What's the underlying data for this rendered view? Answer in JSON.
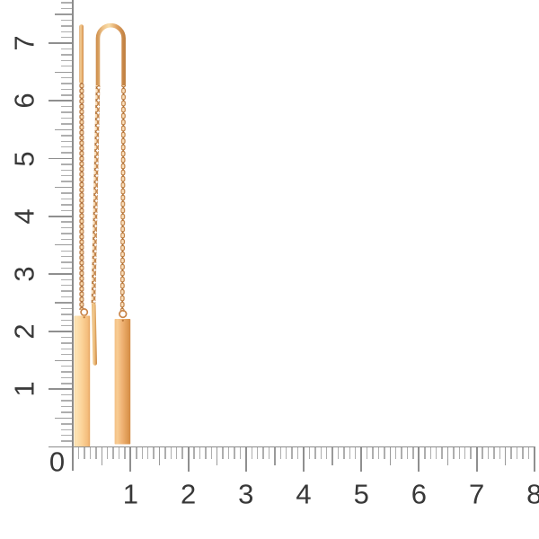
{
  "image_type": "jewelry-product-photo-with-measurement-rulers",
  "background_color": "#ffffff",
  "ruler": {
    "origin_label": "0",
    "line_color": "#8c8c8c",
    "minor_tick_color": "#aeaeae",
    "major_tick_color": "#8f8f8f",
    "label_color": "#383838",
    "vertical": {
      "labels": [
        "1",
        "2",
        "3",
        "4",
        "5",
        "6",
        "7"
      ]
    },
    "horizontal": {
      "labels": [
        "1",
        "2",
        "3",
        "4",
        "5",
        "6",
        "7",
        "8"
      ]
    }
  },
  "jewelry": {
    "description": "pair of gold threader earrings: U-shaped ear wire, cable chain, drop post, vertical bar pendants",
    "items": [
      {
        "name": "left-earring-side-view",
        "parts": [
          "ear-pin",
          "cable-chain",
          "jump-ring",
          "bar-pendant"
        ]
      },
      {
        "name": "right-earring-front-view",
        "parts": [
          "u-shaped-ear-wire",
          "cable-chain",
          "drop-post",
          "jump-ring",
          "bar-pendant"
        ]
      }
    ],
    "palette": {
      "gold_light": "#fbe0b0",
      "gold_mid": "#eeb377",
      "gold_deep": "#c8813f",
      "chain_shadow": "#a2662e"
    }
  }
}
